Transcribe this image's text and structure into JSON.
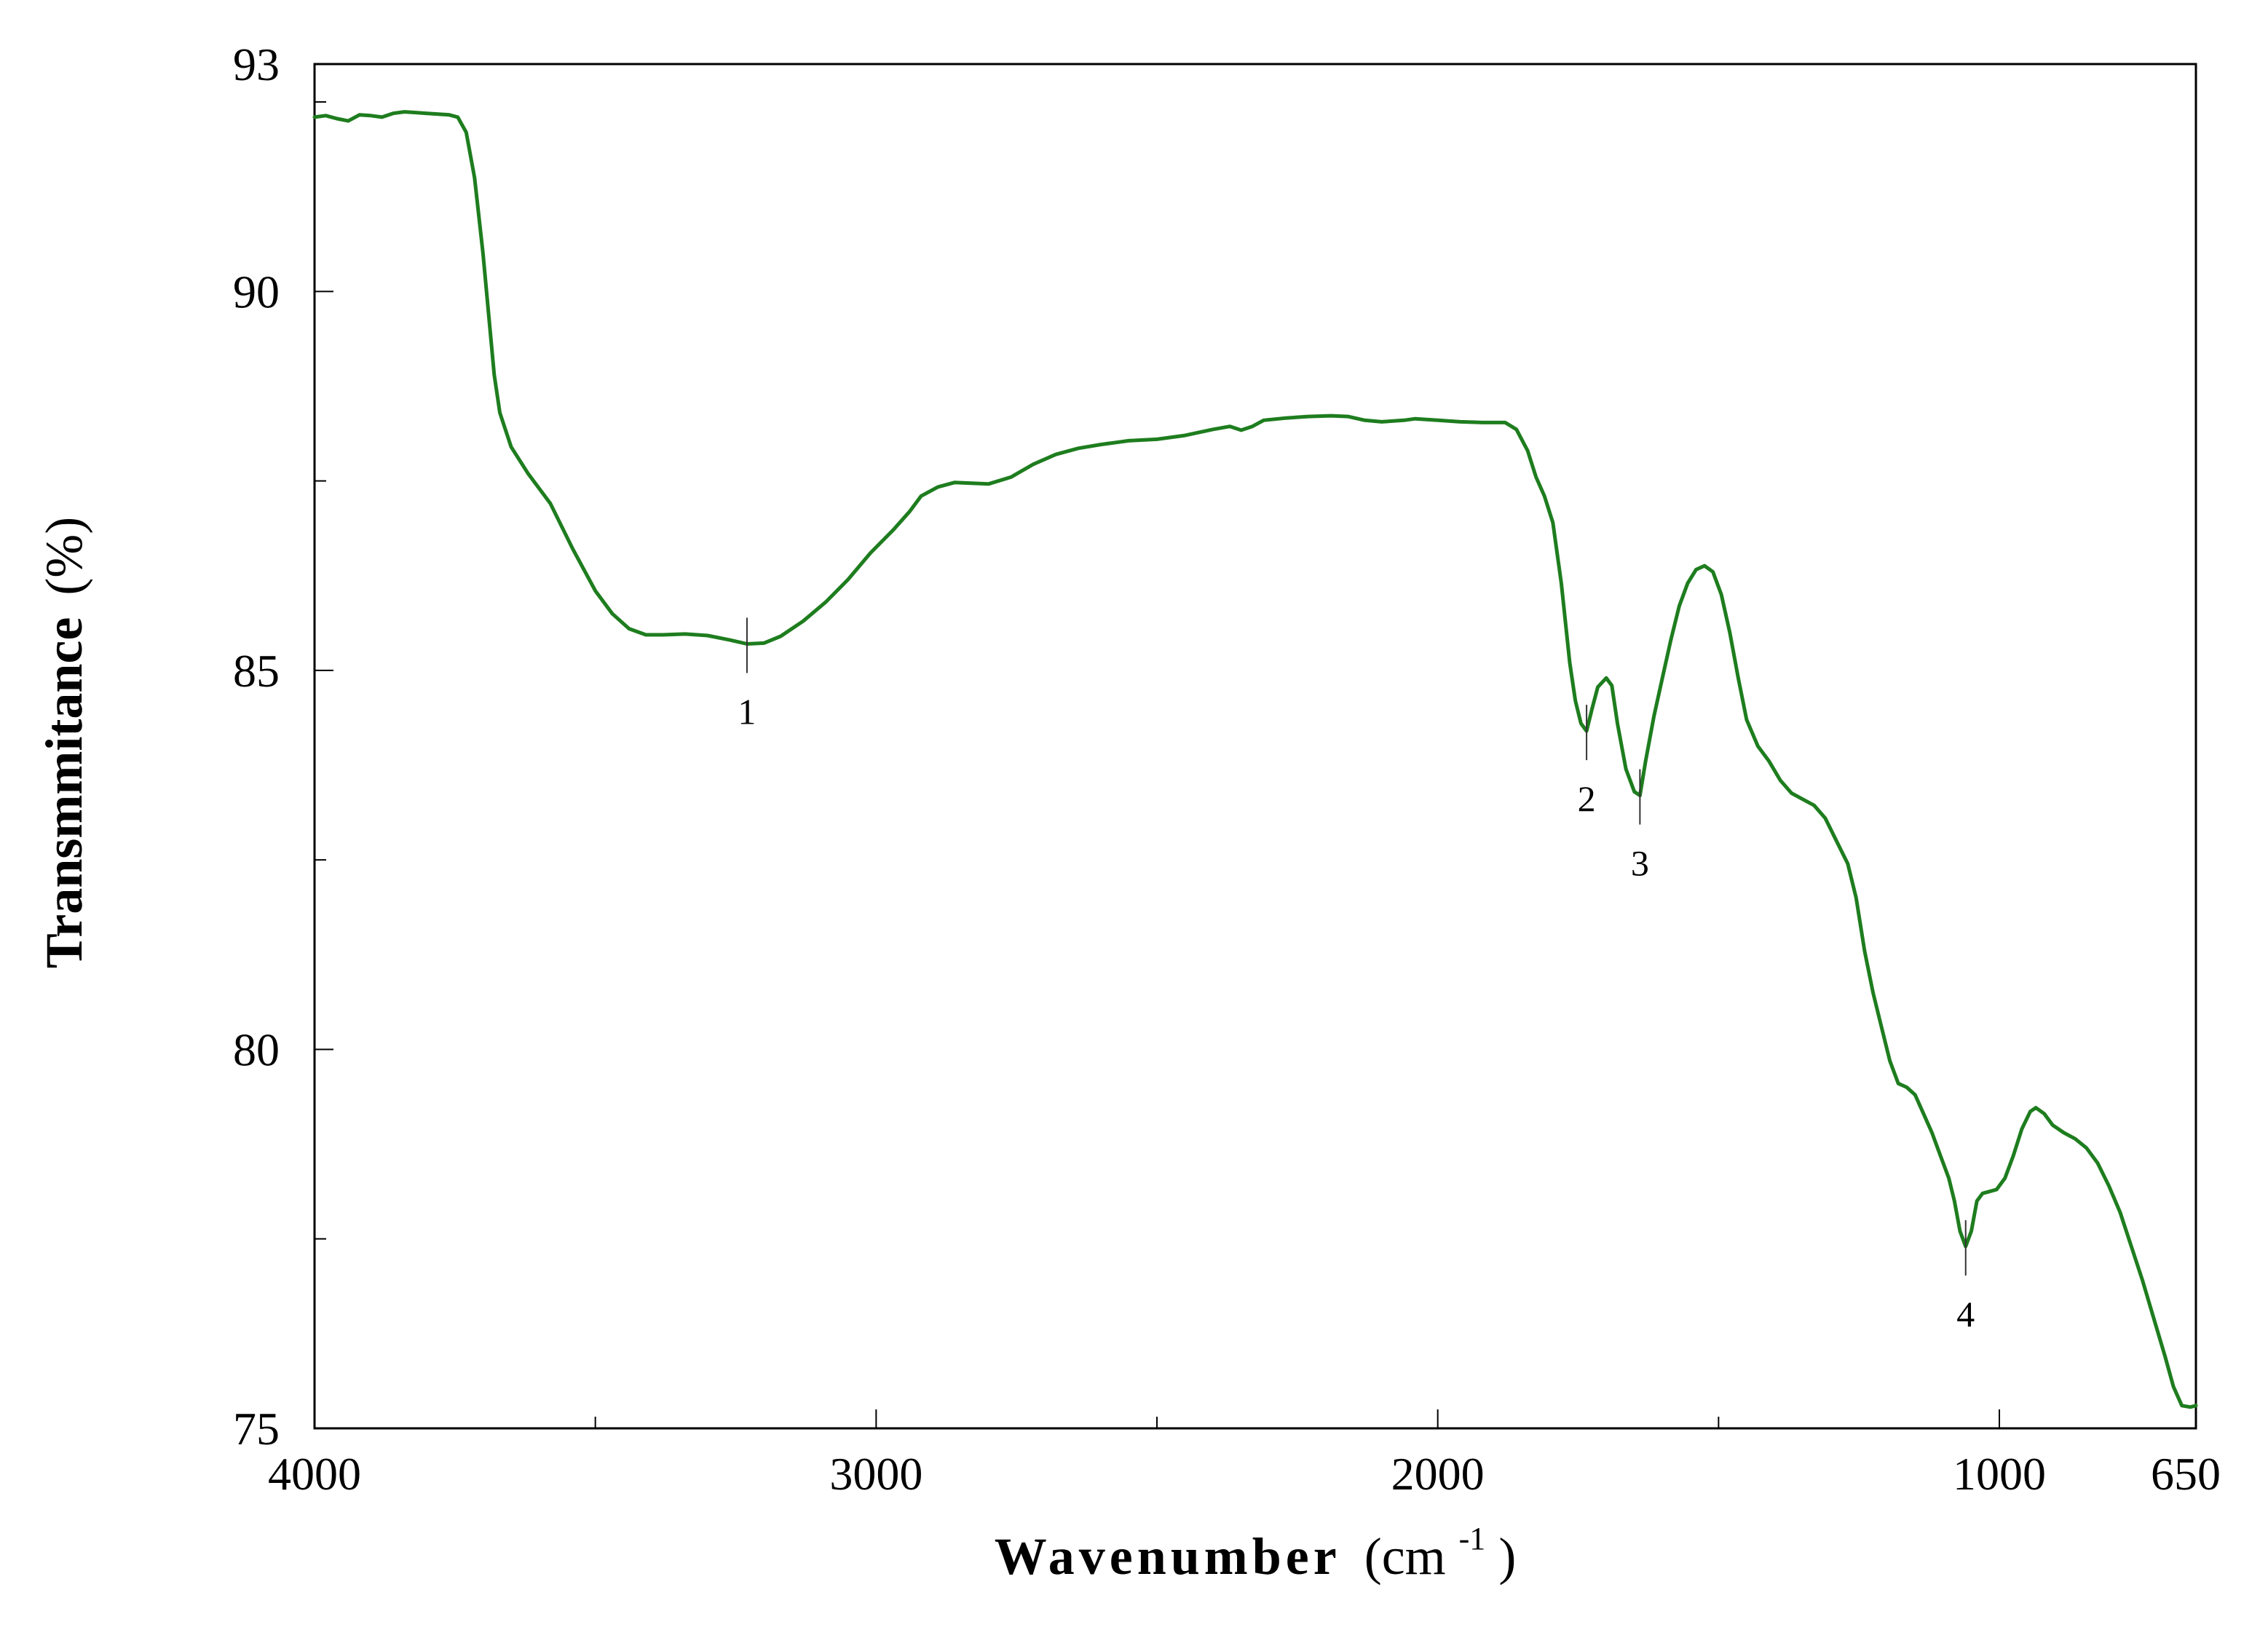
{
  "chart_data": {
    "type": "line",
    "title": "",
    "xlabel": "Wavenumber",
    "xlabel_unit": "(cm",
    "xlabel_unit_sup": "-1",
    "xlabel_unit_close": ")",
    "ylabel": "Transmmitance",
    "ylabel_unit": "(%)",
    "xlim": [
      4000,
      650
    ],
    "ylim": [
      75,
      93
    ],
    "x_ticks": [
      {
        "value": 4000,
        "label": "4000"
      },
      {
        "value": 3000,
        "label": "3000"
      },
      {
        "value": 2000,
        "label": "2000"
      },
      {
        "value": 1000,
        "label": "1000"
      },
      {
        "value": 650,
        "label": "650"
      }
    ],
    "x_minor_ticks": [
      3500,
      2500,
      1500
    ],
    "y_ticks": [
      {
        "value": 93,
        "label": "93"
      },
      {
        "value": 90,
        "label": "90"
      },
      {
        "value": 85,
        "label": "85"
      },
      {
        "value": 80,
        "label": "80"
      },
      {
        "value": 75,
        "label": "75"
      }
    ],
    "y_minor_ticks": [
      92.5,
      87.5,
      82.5,
      77.5
    ],
    "grid": false,
    "line_color": "#1e7d1e",
    "series": [
      {
        "points": [
          [
            4000,
            92.3
          ],
          [
            3980,
            92.32
          ],
          [
            3960,
            92.28
          ],
          [
            3940,
            92.25
          ],
          [
            3920,
            92.33
          ],
          [
            3900,
            92.32
          ],
          [
            3880,
            92.3
          ],
          [
            3860,
            92.35
          ],
          [
            3840,
            92.37
          ],
          [
            3820,
            92.36
          ],
          [
            3800,
            92.35
          ],
          [
            3780,
            92.34
          ],
          [
            3760,
            92.33
          ],
          [
            3745,
            92.3
          ],
          [
            3730,
            92.1
          ],
          [
            3715,
            91.5
          ],
          [
            3700,
            90.5
          ],
          [
            3690,
            89.7
          ],
          [
            3680,
            88.9
          ],
          [
            3670,
            88.4
          ],
          [
            3650,
            87.95
          ],
          [
            3620,
            87.6
          ],
          [
            3580,
            87.2
          ],
          [
            3540,
            86.6
          ],
          [
            3500,
            86.05
          ],
          [
            3470,
            85.75
          ],
          [
            3440,
            85.55
          ],
          [
            3410,
            85.47
          ],
          [
            3380,
            85.47
          ],
          [
            3340,
            85.48
          ],
          [
            3300,
            85.46
          ],
          [
            3260,
            85.4
          ],
          [
            3230,
            85.35
          ],
          [
            3200,
            85.36
          ],
          [
            3170,
            85.45
          ],
          [
            3130,
            85.65
          ],
          [
            3090,
            85.9
          ],
          [
            3050,
            86.2
          ],
          [
            3010,
            86.55
          ],
          [
            2970,
            86.85
          ],
          [
            2940,
            87.1
          ],
          [
            2920,
            87.3
          ],
          [
            2890,
            87.42
          ],
          [
            2860,
            87.48
          ],
          [
            2830,
            87.47
          ],
          [
            2800,
            87.46
          ],
          [
            2760,
            87.55
          ],
          [
            2720,
            87.72
          ],
          [
            2680,
            87.85
          ],
          [
            2640,
            87.93
          ],
          [
            2600,
            87.98
          ],
          [
            2550,
            88.03
          ],
          [
            2500,
            88.05
          ],
          [
            2450,
            88.1
          ],
          [
            2400,
            88.18
          ],
          [
            2370,
            88.22
          ],
          [
            2350,
            88.17
          ],
          [
            2330,
            88.22
          ],
          [
            2310,
            88.3
          ],
          [
            2270,
            88.33
          ],
          [
            2230,
            88.35
          ],
          [
            2190,
            88.36
          ],
          [
            2160,
            88.35
          ],
          [
            2130,
            88.3
          ],
          [
            2100,
            88.28
          ],
          [
            2060,
            88.3
          ],
          [
            2040,
            88.32
          ],
          [
            2000,
            88.3
          ],
          [
            1960,
            88.28
          ],
          [
            1920,
            88.27
          ],
          [
            1880,
            88.27
          ],
          [
            1860,
            88.18
          ],
          [
            1840,
            87.9
          ],
          [
            1825,
            87.55
          ],
          [
            1810,
            87.3
          ],
          [
            1795,
            86.95
          ],
          [
            1780,
            86.15
          ],
          [
            1765,
            85.1
          ],
          [
            1755,
            84.6
          ],
          [
            1745,
            84.3
          ],
          [
            1735,
            84.2
          ],
          [
            1725,
            84.5
          ],
          [
            1715,
            84.78
          ],
          [
            1700,
            84.9
          ],
          [
            1690,
            84.8
          ],
          [
            1680,
            84.3
          ],
          [
            1665,
            83.7
          ],
          [
            1650,
            83.4
          ],
          [
            1640,
            83.35
          ],
          [
            1630,
            83.8
          ],
          [
            1615,
            84.4
          ],
          [
            1600,
            84.9
          ],
          [
            1585,
            85.4
          ],
          [
            1570,
            85.85
          ],
          [
            1555,
            86.15
          ],
          [
            1540,
            86.33
          ],
          [
            1525,
            86.38
          ],
          [
            1510,
            86.3
          ],
          [
            1495,
            86.0
          ],
          [
            1480,
            85.5
          ],
          [
            1465,
            84.9
          ],
          [
            1450,
            84.35
          ],
          [
            1430,
            84.0
          ],
          [
            1410,
            83.8
          ],
          [
            1390,
            83.55
          ],
          [
            1370,
            83.38
          ],
          [
            1350,
            83.3
          ],
          [
            1330,
            83.22
          ],
          [
            1310,
            83.05
          ],
          [
            1290,
            82.75
          ],
          [
            1270,
            82.45
          ],
          [
            1255,
            82.0
          ],
          [
            1240,
            81.3
          ],
          [
            1225,
            80.75
          ],
          [
            1210,
            80.3
          ],
          [
            1195,
            79.85
          ],
          [
            1180,
            79.55
          ],
          [
            1165,
            79.5
          ],
          [
            1150,
            79.4
          ],
          [
            1135,
            79.15
          ],
          [
            1120,
            78.9
          ],
          [
            1105,
            78.6
          ],
          [
            1090,
            78.3
          ],
          [
            1080,
            78.0
          ],
          [
            1070,
            77.6
          ],
          [
            1060,
            77.4
          ],
          [
            1050,
            77.6
          ],
          [
            1040,
            78.0
          ],
          [
            1030,
            78.1
          ],
          [
            1020,
            78.12
          ],
          [
            1005,
            78.15
          ],
          [
            990,
            78.3
          ],
          [
            975,
            78.6
          ],
          [
            960,
            78.95
          ],
          [
            945,
            79.18
          ],
          [
            935,
            79.23
          ],
          [
            920,
            79.15
          ],
          [
            905,
            79.0
          ],
          [
            885,
            78.9
          ],
          [
            865,
            78.82
          ],
          [
            845,
            78.7
          ],
          [
            825,
            78.5
          ],
          [
            805,
            78.2
          ],
          [
            785,
            77.85
          ],
          [
            765,
            77.4
          ],
          [
            745,
            76.95
          ],
          [
            725,
            76.45
          ],
          [
            705,
            75.95
          ],
          [
            690,
            75.55
          ],
          [
            675,
            75.3
          ],
          [
            660,
            75.28
          ],
          [
            650,
            75.3
          ]
        ]
      }
    ],
    "peak_markers": [
      {
        "label": "1",
        "x": 3230,
        "y": 85.35
      },
      {
        "label": "2",
        "x": 1735,
        "y": 84.2
      },
      {
        "label": "3",
        "x": 1640,
        "y": 83.35
      },
      {
        "label": "4",
        "x": 1060,
        "y": 77.4
      }
    ]
  }
}
